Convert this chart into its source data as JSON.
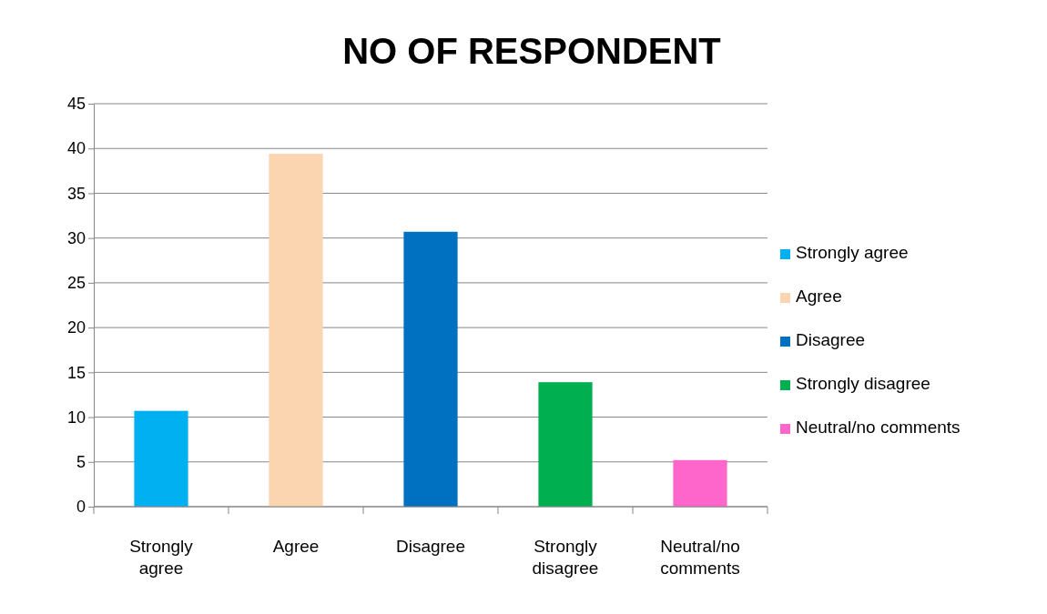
{
  "chart_data": {
    "type": "bar",
    "title": "NO OF RESPONDENT",
    "stacked": true,
    "categories": [
      "Strongly agree",
      "Agree",
      "Disagree",
      "Strongly disagree",
      "Neutral/no comments"
    ],
    "series": [
      {
        "name": "Strongly agree",
        "color": "#00b0f0",
        "values": [
          10.7,
          null,
          null,
          null,
          null
        ]
      },
      {
        "name": "Agree",
        "color": "#fad5b0",
        "values": [
          null,
          39.4,
          null,
          null,
          null
        ]
      },
      {
        "name": "Disagree",
        "color": "#0070c0",
        "values": [
          null,
          null,
          30.7,
          null,
          null
        ]
      },
      {
        "name": "Strongly disagree",
        "color": "#00b050",
        "values": [
          null,
          null,
          null,
          13.9,
          null
        ]
      },
      {
        "name": "Neutral/no comments",
        "color": "#ff66cc",
        "values": [
          null,
          null,
          null,
          null,
          5.2
        ]
      }
    ],
    "ylim": [
      0,
      45
    ],
    "yticks": [
      0,
      5,
      10,
      15,
      20,
      25,
      30,
      35,
      40,
      45
    ],
    "grid": "y",
    "legend": "right"
  }
}
